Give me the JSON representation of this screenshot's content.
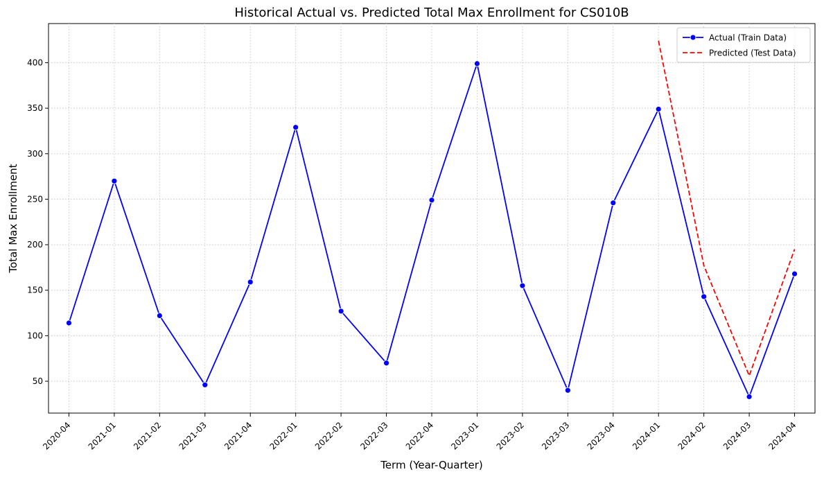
{
  "chart_data": {
    "type": "line",
    "title": "Historical Actual vs. Predicted Total Max Enrollment for CS010B",
    "xlabel": "Term (Year-Quarter)",
    "ylabel": "Total Max Enrollment",
    "categories": [
      "2020-04",
      "2021-01",
      "2021-02",
      "2021-03",
      "2021-04",
      "2022-01",
      "2022-02",
      "2022-03",
      "2022-04",
      "2023-01",
      "2023-02",
      "2023-03",
      "2023-04",
      "2024-01",
      "2024-02",
      "2024-03",
      "2024-04"
    ],
    "ylim": [
      15,
      443
    ],
    "yticks": [
      50,
      100,
      150,
      200,
      250,
      300,
      350,
      400
    ],
    "grid": true,
    "legend_position": "top-right",
    "series": [
      {
        "name": "Actual (Train Data)",
        "color": "#0000ff",
        "style": "solid",
        "marker": "circle",
        "x": [
          "2020-04",
          "2021-01",
          "2021-02",
          "2021-03",
          "2021-04",
          "2022-01",
          "2022-02",
          "2022-03",
          "2022-04",
          "2023-01",
          "2023-02",
          "2023-03",
          "2023-04",
          "2024-01",
          "2024-02",
          "2024-03",
          "2024-04"
        ],
        "values": [
          114,
          270,
          122,
          46,
          159,
          329,
          127,
          70,
          249,
          399,
          155,
          40,
          246,
          349,
          143,
          33,
          168
        ]
      },
      {
        "name": "Predicted (Test Data)",
        "color": "#ff0000",
        "style": "dashed",
        "marker": "none",
        "x": [
          "2024-01",
          "2024-02",
          "2024-03",
          "2024-04"
        ],
        "values": [
          424,
          177,
          56,
          195
        ]
      }
    ]
  }
}
